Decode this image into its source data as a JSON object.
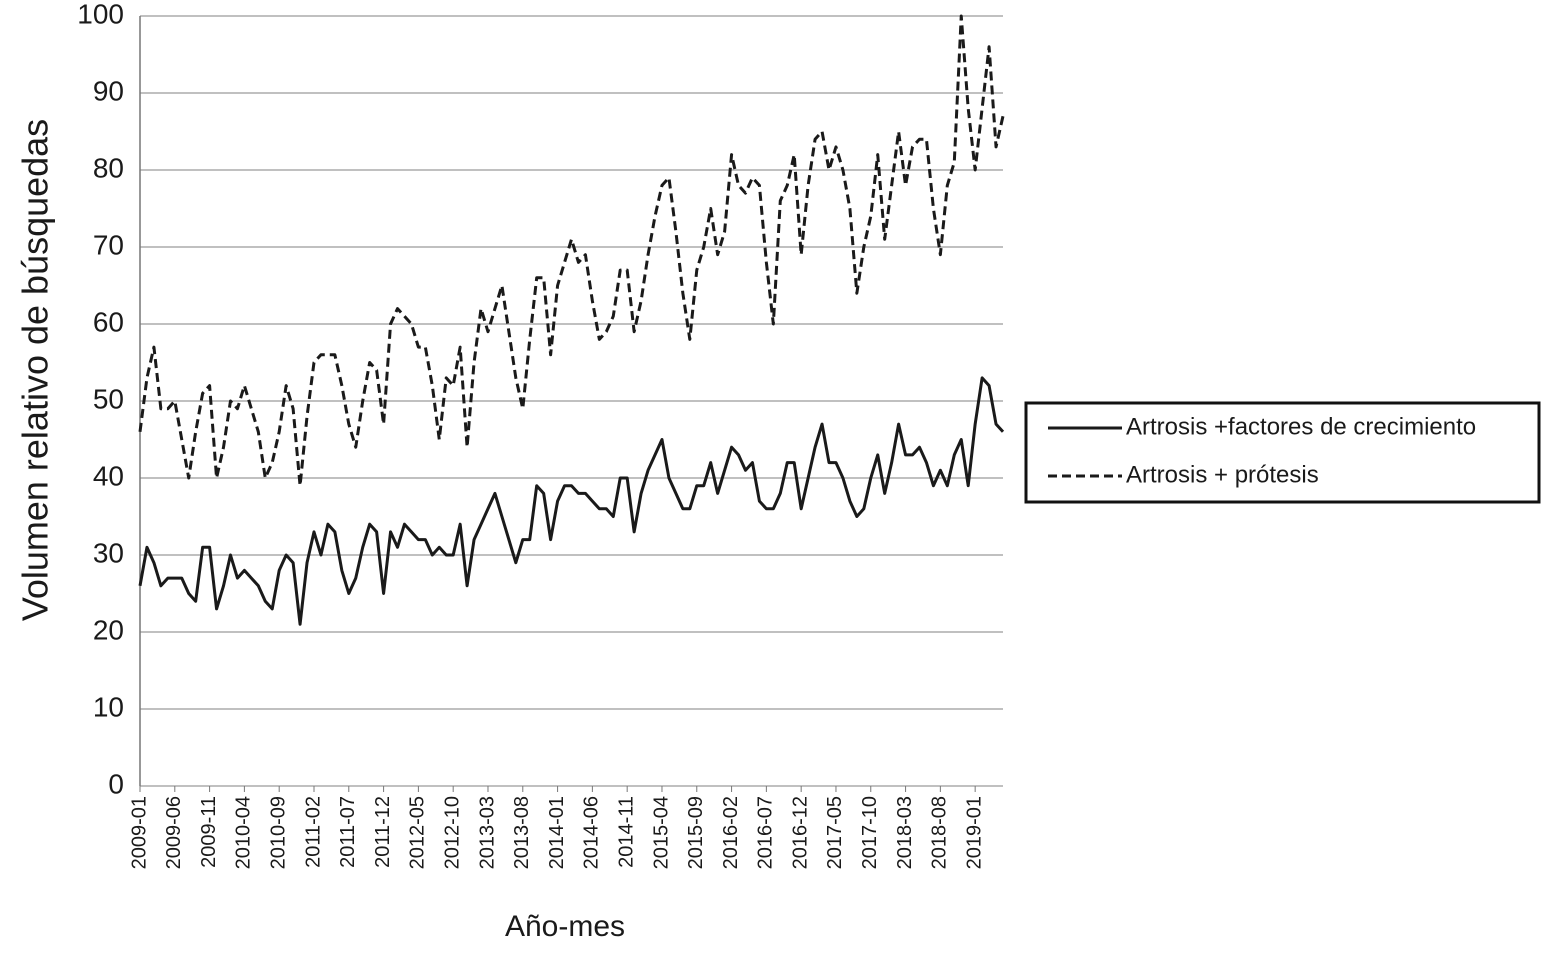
{
  "chart_data": {
    "type": "line",
    "y_label": "Volumen relativo de búsquedas",
    "x_label": "Año-mes",
    "categories": [
      "2009-01",
      null,
      null,
      null,
      null,
      "2009-06",
      null,
      null,
      null,
      null,
      "2009-11",
      null,
      null,
      null,
      null,
      "2010-04",
      null,
      null,
      null,
      null,
      "2010-09",
      null,
      null,
      null,
      null,
      "2011-02",
      null,
      null,
      null,
      null,
      "2011-07",
      null,
      null,
      null,
      null,
      "2011-12",
      null,
      null,
      null,
      null,
      "2012-05",
      null,
      null,
      null,
      null,
      "2012-10",
      null,
      null,
      null,
      null,
      "2013-03",
      null,
      null,
      null,
      null,
      "2013-08",
      null,
      null,
      null,
      null,
      "2014-01",
      null,
      null,
      null,
      null,
      "2014-06",
      null,
      null,
      null,
      null,
      "2014-11",
      null,
      null,
      null,
      null,
      "2015-04",
      null,
      null,
      null,
      null,
      "2015-09",
      null,
      null,
      null,
      null,
      "2016-02",
      null,
      null,
      null,
      null,
      "2016-07",
      null,
      null,
      null,
      null,
      "2016-12",
      null,
      null,
      null,
      null,
      "2017-05",
      null,
      null,
      null,
      null,
      "2017-10",
      null,
      null,
      null,
      null,
      "2018-03",
      null,
      null,
      null,
      null,
      "2018-08",
      null,
      null,
      null,
      null,
      "2019-01",
      null,
      null,
      null,
      null
    ],
    "series": [
      {
        "name": "Artrosis +factores de crecimiento",
        "color": "#1a1a1a",
        "style": "solid",
        "values": [
          26,
          31,
          29,
          26,
          27,
          27,
          27,
          25,
          24,
          31,
          31,
          23,
          26,
          30,
          27,
          28,
          27,
          26,
          24,
          23,
          28,
          30,
          29,
          21,
          29,
          33,
          30,
          34,
          33,
          28,
          25,
          27,
          31,
          34,
          33,
          25,
          33,
          31,
          34,
          33,
          32,
          32,
          30,
          31,
          30,
          30,
          34,
          26,
          32,
          34,
          36,
          38,
          35,
          32,
          29,
          32,
          32,
          39,
          38,
          32,
          37,
          39,
          39,
          38,
          38,
          37,
          36,
          36,
          35,
          40,
          40,
          33,
          38,
          41,
          43,
          45,
          40,
          38,
          36,
          36,
          39,
          39,
          42,
          38,
          41,
          44,
          43,
          41,
          42,
          37,
          36,
          36,
          38,
          42,
          42,
          36,
          40,
          44,
          47,
          42,
          42,
          40,
          37,
          35,
          36,
          40,
          43,
          38,
          42,
          47,
          43,
          43,
          44,
          42,
          39,
          41,
          39,
          43,
          45,
          39,
          47,
          53,
          52,
          47,
          46
        ]
      },
      {
        "name": "Artrosis + prótesis",
        "color": "#1a1a1a",
        "style": "dashed",
        "values": [
          46,
          53,
          57,
          49,
          49,
          50,
          45,
          40,
          46,
          51,
          52,
          40,
          44,
          50,
          49,
          52,
          49,
          46,
          40,
          42,
          46,
          52,
          49,
          39,
          48,
          55,
          56,
          56,
          56,
          52,
          47,
          44,
          50,
          55,
          54,
          47,
          60,
          62,
          61,
          60,
          57,
          57,
          52,
          45,
          53,
          52,
          57,
          44,
          55,
          62,
          59,
          62,
          65,
          59,
          53,
          49,
          58,
          66,
          66,
          56,
          65,
          68,
          71,
          68,
          69,
          63,
          58,
          59,
          61,
          67,
          67,
          59,
          63,
          69,
          74,
          78,
          79,
          72,
          64,
          58,
          67,
          70,
          75,
          69,
          72,
          82,
          78,
          77,
          79,
          78,
          68,
          60,
          76,
          78,
          82,
          69,
          78,
          84,
          85,
          80,
          83,
          80,
          75,
          64,
          70,
          74,
          82,
          71,
          78,
          85,
          78,
          83,
          84,
          84,
          75,
          69,
          78,
          81,
          100,
          88,
          80,
          88,
          96,
          83,
          87
        ]
      }
    ],
    "ylim": [
      0,
      100
    ],
    "yticks": [
      0,
      10,
      20,
      30,
      40,
      50,
      60,
      70,
      80,
      90,
      100
    ],
    "grid": true,
    "legend": "right"
  }
}
